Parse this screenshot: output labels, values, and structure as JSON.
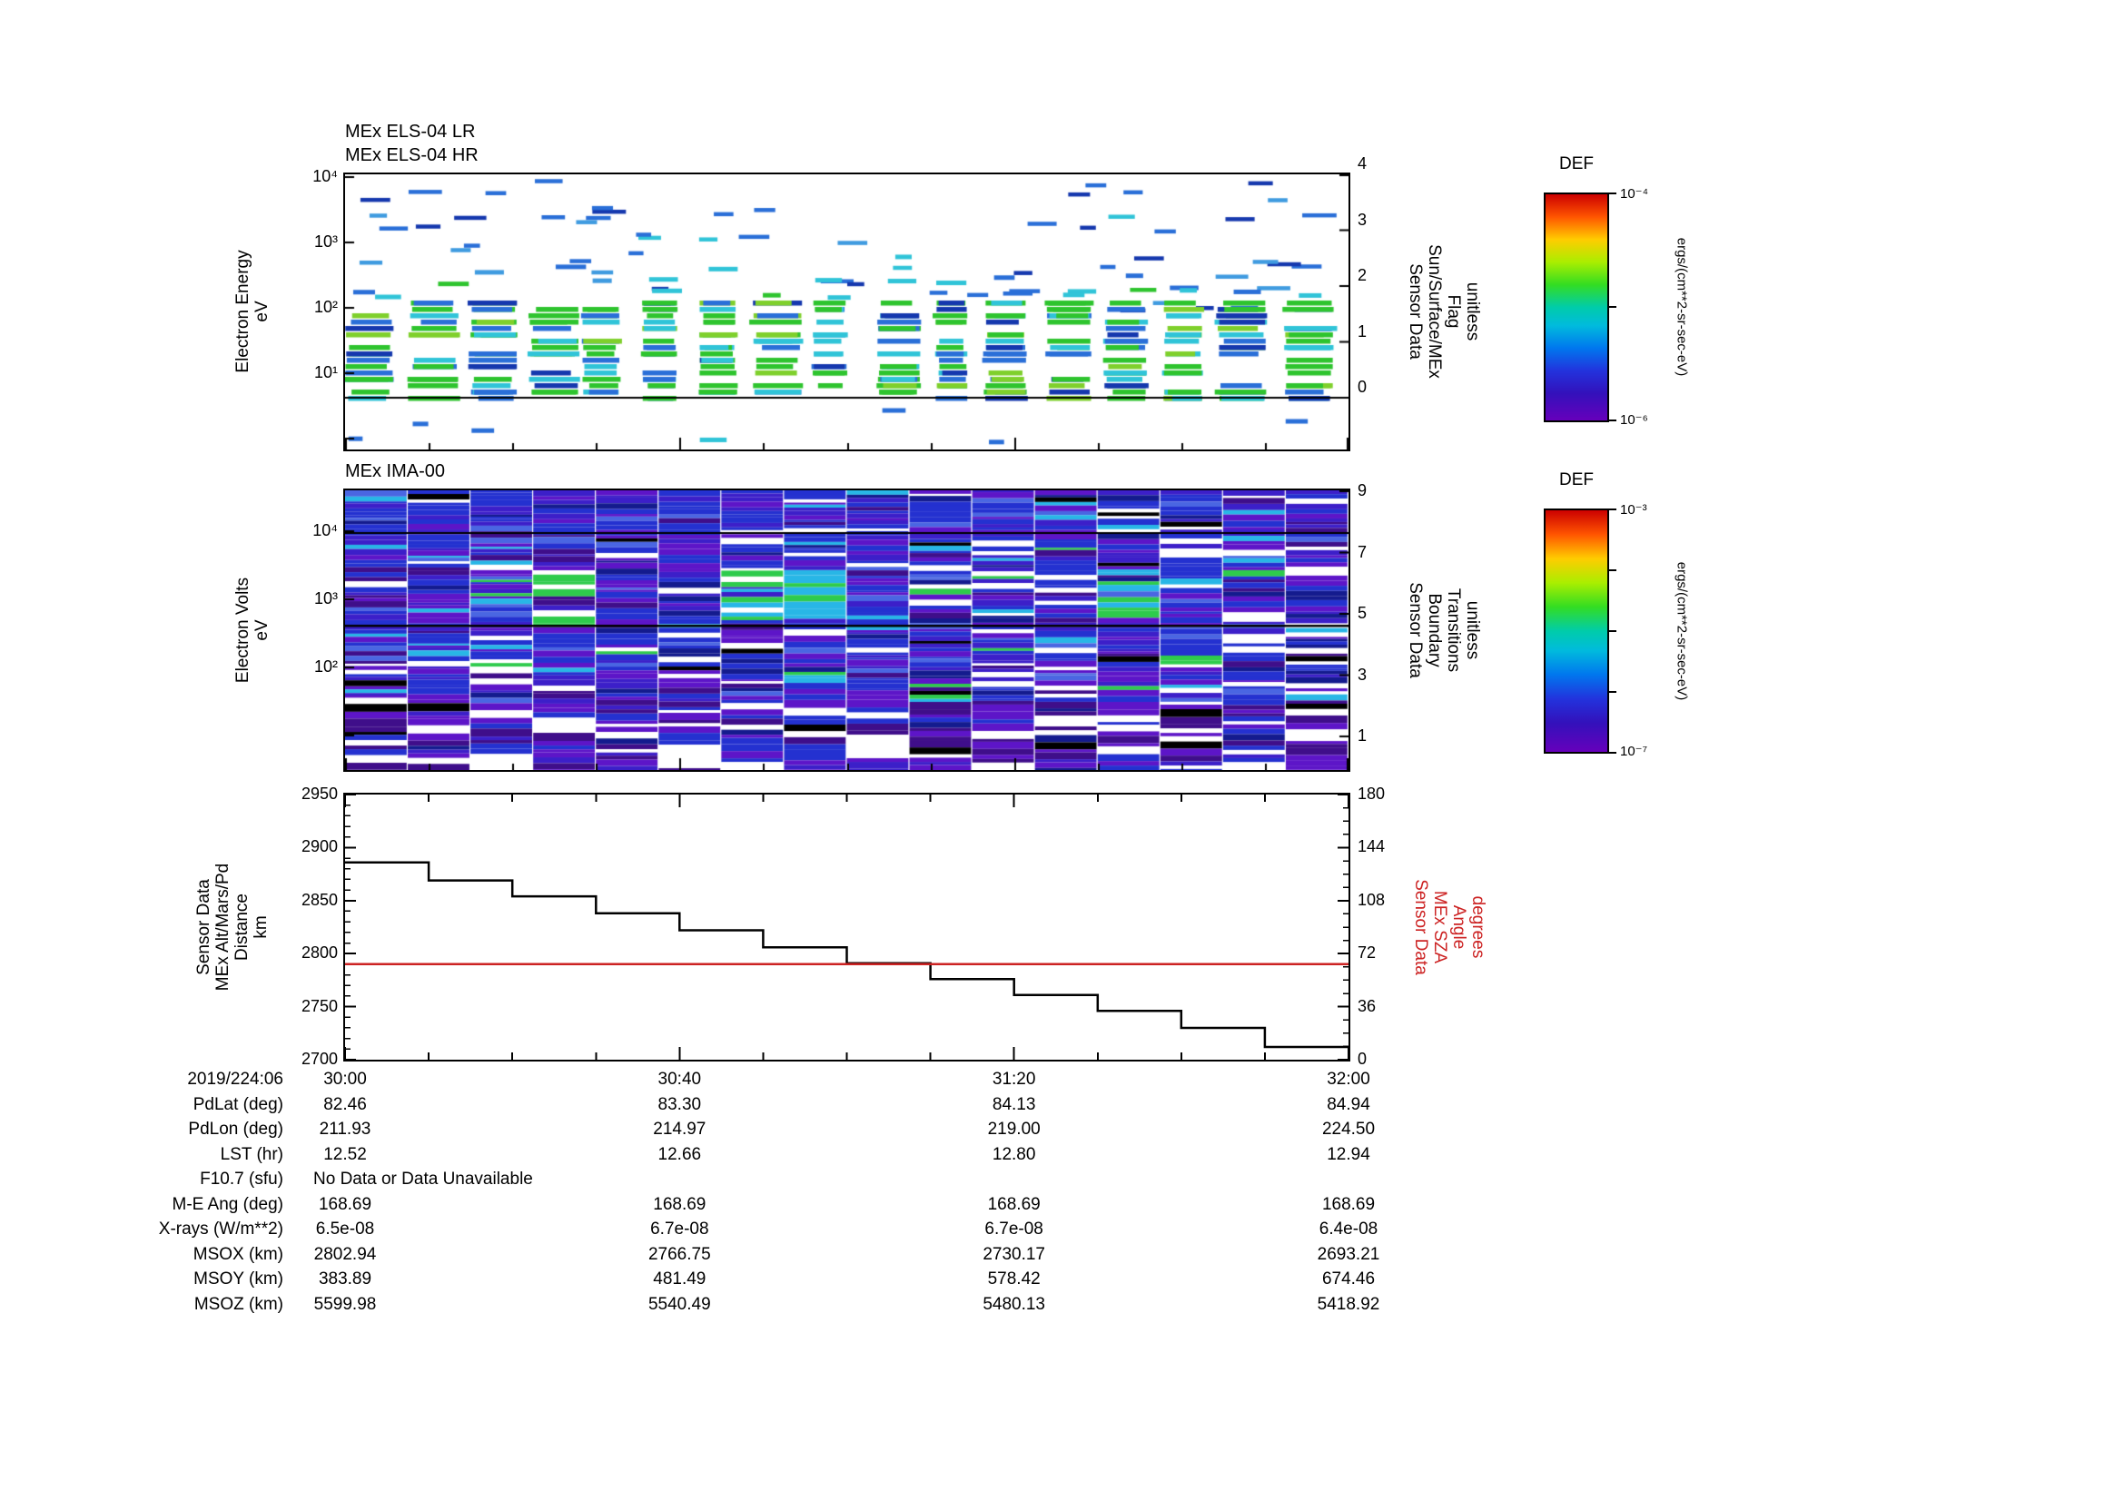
{
  "titles": {
    "els_lr": "MEx ELS-04 LR",
    "els_hr": "MEx ELS-04 HR",
    "ima": "MEx IMA-00"
  },
  "axes": {
    "els": {
      "left_lines": [
        "Electron Energy",
        "eV"
      ],
      "left_ticks": [
        "10⁴",
        "10³",
        "10²",
        "10¹"
      ],
      "right_lines": [
        "Sensor Data",
        "Sun/Surface/MEx",
        "Flag",
        "unitless"
      ],
      "right_ticks": [
        "4",
        "3",
        "2",
        "1",
        "0"
      ]
    },
    "ima": {
      "left_lines": [
        "Electron Volts",
        "eV"
      ],
      "left_ticks": [
        "10⁴",
        "10³",
        "10²"
      ],
      "right_lines": [
        "Sensor Data",
        "Boundary",
        "Transitions",
        "unitless"
      ],
      "right_ticks": [
        "9",
        "7",
        "5",
        "3",
        "1"
      ]
    },
    "line": {
      "left_lines": [
        "Sensor Data",
        "MEx Alt/Mars/Pd",
        "Distance",
        "km"
      ],
      "left_ticks": [
        "2950",
        "2900",
        "2850",
        "2800",
        "2750",
        "2700"
      ],
      "right_lines": [
        "Sensor Data",
        "MEx SZA",
        "Angle",
        "degrees"
      ],
      "right_ticks": [
        "180",
        "144",
        "108",
        "72",
        "36",
        "0"
      ],
      "right_color": "#cc2222"
    },
    "x_ticks": [
      "30:00",
      "30:40",
      "31:20",
      "32:00"
    ]
  },
  "colorbars": [
    {
      "title": "DEF",
      "top": "10⁻⁴",
      "bottom": "10⁻⁶",
      "unit": "ergs/(cm**2-sr-sec-eV)"
    },
    {
      "title": "DEF",
      "top": "10⁻³",
      "bottom": "10⁻⁷",
      "unit": "ergs/(cm**2-sr-sec-eV)"
    }
  ],
  "table": {
    "rows": [
      {
        "label": "2019/224:06",
        "values": [
          "30:00",
          "30:40",
          "31:20",
          "32:00"
        ]
      },
      {
        "label": "PdLat (deg)",
        "values": [
          "82.46",
          "83.30",
          "84.13",
          "84.94"
        ]
      },
      {
        "label": "PdLon (deg)",
        "values": [
          "211.93",
          "214.97",
          "219.00",
          "224.50"
        ]
      },
      {
        "label": "LST (hr)",
        "values": [
          "12.52",
          "12.66",
          "12.80",
          "12.94"
        ]
      },
      {
        "label": "F10.7 (sfu)",
        "values": [],
        "note": "No Data or Data Unavailable"
      },
      {
        "label": "M-E Ang (deg)",
        "values": [
          "168.69",
          "168.69",
          "168.69",
          "168.69"
        ]
      },
      {
        "label": "X-rays (W/m**2)",
        "values": [
          "6.5e-08",
          "6.7e-08",
          "6.7e-08",
          "6.4e-08"
        ]
      },
      {
        "label": "MSOX (km)",
        "values": [
          "2802.94",
          "2766.75",
          "2730.17",
          "2693.21"
        ]
      },
      {
        "label": "MSOY (km)",
        "values": [
          "383.89",
          "481.49",
          "578.42",
          "674.46"
        ]
      },
      {
        "label": "MSOZ (km)",
        "values": [
          "5599.98",
          "5540.49",
          "5480.13",
          "5418.92"
        ]
      }
    ]
  },
  "chart_data": [
    {
      "type": "heatmap",
      "name": "els_spectrogram",
      "title": "MEx ELS-04 LR / MEx ELS-04 HR",
      "x_range": [
        "30:00",
        "32:00"
      ],
      "y_axis": {
        "label": "Electron Energy eV",
        "scale": "log",
        "range_eV": [
          0.7,
          11000
        ],
        "ticks": [
          "10⁴",
          "10³",
          "10²",
          "10¹"
        ]
      },
      "right_axis": {
        "label": "Sensor Data Sun/Surface/MEx Flag unitless",
        "ticks": [
          4,
          3,
          2,
          1,
          0
        ],
        "flag_line_value": 0
      },
      "units": "ergs/(cm**2-sr-sec-eV)",
      "z_range": [
        "1e-6",
        "1e-4"
      ],
      "description": "Sparse blue dashes from 150 eV to 10 keV; dense clusters of green/cyan/blue bars between ~4 and ~120 eV in 17 time groups; black sensor-flag line at flag=0",
      "seed": 20190224,
      "clusters": 17,
      "sparse_count": 58,
      "palette": {
        "green": "#2ec42e",
        "lime": "#7fd02c",
        "cyan": "#30c4d8",
        "blue": "#2a6fd8",
        "dark_blue": "#1538ae",
        "sky": "#3f9be0"
      }
    },
    {
      "type": "heatmap",
      "name": "ima_spectrogram",
      "title": "MEx IMA-00",
      "x_range": [
        "30:00",
        "32:00"
      ],
      "y_axis": {
        "label": "Electron Volts eV",
        "scale": "log",
        "range_eV": [
          10,
          25000
        ],
        "ticks": [
          "10⁴",
          "10³",
          "10²"
        ]
      },
      "right_axis": {
        "label": "Sensor Data Boundary Transitions unitless",
        "ticks": [
          9,
          7,
          5,
          3,
          1
        ]
      },
      "units": "ergs/(cm**2-sr-sec-eV)",
      "z_range": [
        "1e-7",
        "1e-3"
      ],
      "description": "16 time columns of dense horizontal stripes, mostly blue/indigo/violet with white gaps; bright cyan/green band near 1 keV in some columns; black lines across near top and mid panel",
      "seed": 77001,
      "columns": 16,
      "bright_columns": [
        3,
        6,
        7,
        12
      ],
      "palette": {
        "blue": "#2431d0",
        "indigo": "#3c1fc9",
        "violet": "#5d15c8",
        "deep": "#3f0e8a",
        "white": "#ffffff",
        "steel": "#4a66e2",
        "cyan2": "#28b6e6",
        "navy": "#141b8e",
        "green": "#2ecb4c",
        "black": "#000000"
      }
    },
    {
      "type": "line",
      "name": "altitude_sza",
      "x_ticks": [
        "30:00",
        "30:40",
        "31:20",
        "32:00"
      ],
      "left_axis": {
        "label": "Sensor Data MEx Alt/Mars/Pd Distance km",
        "range": [
          2700,
          2950
        ],
        "ticks": [
          2950,
          2900,
          2850,
          2800,
          2750,
          2700
        ]
      },
      "right_axis": {
        "label": "Sensor Data MEx SZA Angle degrees",
        "range": [
          0,
          180
        ],
        "ticks": [
          180,
          144,
          108,
          72,
          36,
          0
        ],
        "color": "#cc2222"
      },
      "series": [
        {
          "name": "MEx altitude (km)",
          "color": "#000000",
          "style": "steps",
          "step_values": [
            2886,
            2869,
            2854,
            2838,
            2822,
            2806,
            2791,
            2776,
            2761,
            2746,
            2730,
            2712
          ]
        },
        {
          "name": "MEx SZA (deg)",
          "color": "#cc2222",
          "style": "constant",
          "value": 65
        }
      ]
    }
  ]
}
